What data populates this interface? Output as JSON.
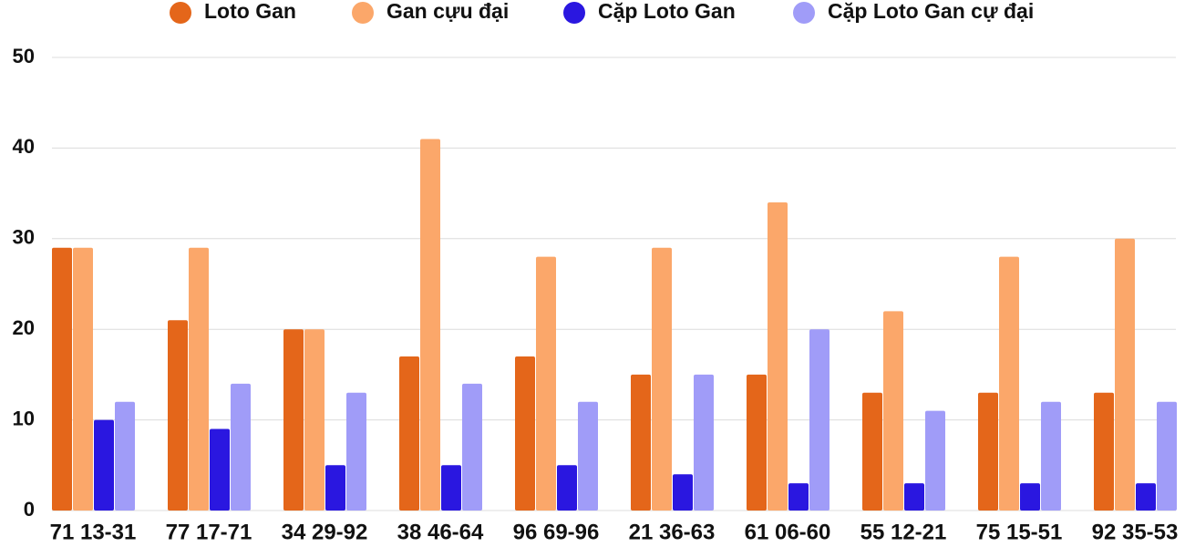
{
  "chart_data": {
    "type": "bar",
    "categories": [
      "71 13-31",
      "77 17-71",
      "34 29-92",
      "38 46-64",
      "96 69-96",
      "21 36-63",
      "61 06-60",
      "55 12-21",
      "75 15-51",
      "92 35-53"
    ],
    "series": [
      {
        "name": "Loto Gan",
        "color": "#e4661a",
        "values": [
          29,
          21,
          20,
          17,
          17,
          15,
          15,
          13,
          13,
          13
        ]
      },
      {
        "name": "Gan cựu đại",
        "color": "#fba76a",
        "values": [
          29,
          29,
          20,
          41,
          28,
          29,
          34,
          22,
          28,
          30
        ]
      },
      {
        "name": "Cặp Loto Gan",
        "color": "#2a17e0",
        "values": [
          10,
          9,
          5,
          5,
          5,
          4,
          3,
          3,
          3,
          3
        ]
      },
      {
        "name": "Cặp Loto Gan cự đại",
        "color": "#a09cf8",
        "values": [
          12,
          14,
          13,
          14,
          12,
          15,
          20,
          11,
          12,
          12
        ]
      }
    ],
    "ylim": [
      0,
      50
    ],
    "yticks": [
      0,
      10,
      20,
      30,
      40,
      50
    ],
    "grid": true
  }
}
